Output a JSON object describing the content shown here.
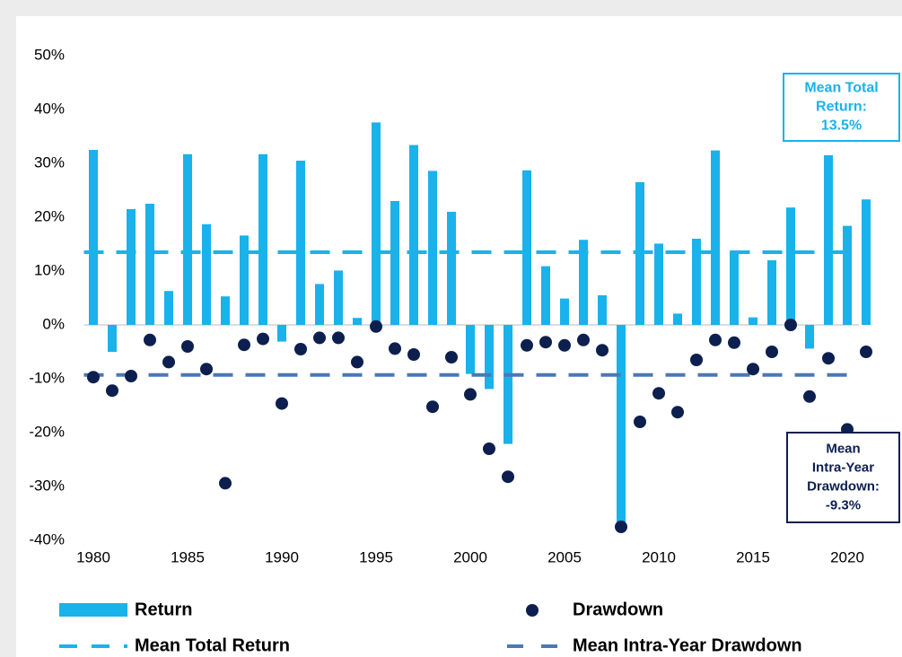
{
  "chart_data": {
    "type": "bar",
    "x": [
      1980,
      1981,
      1982,
      1983,
      1984,
      1985,
      1986,
      1987,
      1988,
      1989,
      1990,
      1991,
      1992,
      1993,
      1994,
      1995,
      1996,
      1997,
      1998,
      1999,
      2000,
      2001,
      2002,
      2003,
      2004,
      2005,
      2006,
      2007,
      2008,
      2009,
      2010,
      2011,
      2012,
      2013,
      2014,
      2015,
      2016,
      2017,
      2018,
      2019,
      2020,
      2021
    ],
    "series": [
      {
        "name": "Return",
        "type": "bar",
        "color": "#1ab2ea",
        "values": [
          32.5,
          -5,
          21.5,
          22.5,
          6.3,
          31.7,
          18.7,
          5.3,
          16.6,
          31.7,
          -3.1,
          30.5,
          7.6,
          10.1,
          1.3,
          37.6,
          23,
          33.4,
          28.6,
          21,
          -9.1,
          -11.9,
          -22.1,
          28.7,
          10.9,
          4.9,
          15.8,
          5.5,
          -37,
          26.5,
          15.1,
          2.1,
          16,
          32.4,
          13.7,
          1.4,
          12,
          21.8,
          -4.4,
          31.5,
          18.4,
          23.3
        ]
      },
      {
        "name": "Drawdown",
        "type": "scatter",
        "color": "#0d1f4f",
        "values": [
          -9.7,
          -12.2,
          -9.5,
          -2.8,
          -6.9,
          -4,
          -8.2,
          -29.4,
          -3.7,
          -2.6,
          -14.6,
          -4.5,
          -2.4,
          -2.4,
          -6.9,
          -0.3,
          -4.4,
          -5.5,
          -15.2,
          -6,
          -12.9,
          -23,
          -28.2,
          -3.8,
          -3.2,
          -3.8,
          -2.8,
          -4.7,
          -37.5,
          -18,
          -12.7,
          -16.2,
          -6.5,
          -2.8,
          -3.3,
          -8.2,
          -5,
          0,
          -13.3,
          -6.2,
          -19.4,
          -5
        ]
      }
    ],
    "reference_lines": [
      {
        "name": "Mean Total Return",
        "value": 13.5,
        "color": "#1ab2ea"
      },
      {
        "name": "Mean Intra-Year Drawdown",
        "value": -9.3,
        "color": "#4a78b5"
      }
    ],
    "annotations": [
      {
        "lines": [
          "Mean Total",
          "Return:",
          "13.5%"
        ]
      },
      {
        "lines": [
          "Mean",
          "Intra-Year",
          "Drawdown:",
          "-9.3%"
        ]
      }
    ],
    "xlim": [
      1979.5,
      2021.5
    ],
    "xticks": [
      1980,
      1985,
      1990,
      1995,
      2000,
      2005,
      2010,
      2015,
      2020
    ],
    "ylim": [
      -40,
      50
    ],
    "yticks": [
      {
        "value": -40,
        "label": "-40%"
      },
      {
        "value": -30,
        "label": "-30%"
      },
      {
        "value": -20,
        "label": "-20%"
      },
      {
        "value": -10,
        "label": "-10%"
      },
      {
        "value": 0,
        "label": "0%"
      },
      {
        "value": 10,
        "label": "10%"
      },
      {
        "value": 20,
        "label": "20%"
      },
      {
        "value": 30,
        "label": "30%"
      },
      {
        "value": 40,
        "label": "40%"
      },
      {
        "value": 50,
        "label": "50%"
      }
    ]
  }
}
